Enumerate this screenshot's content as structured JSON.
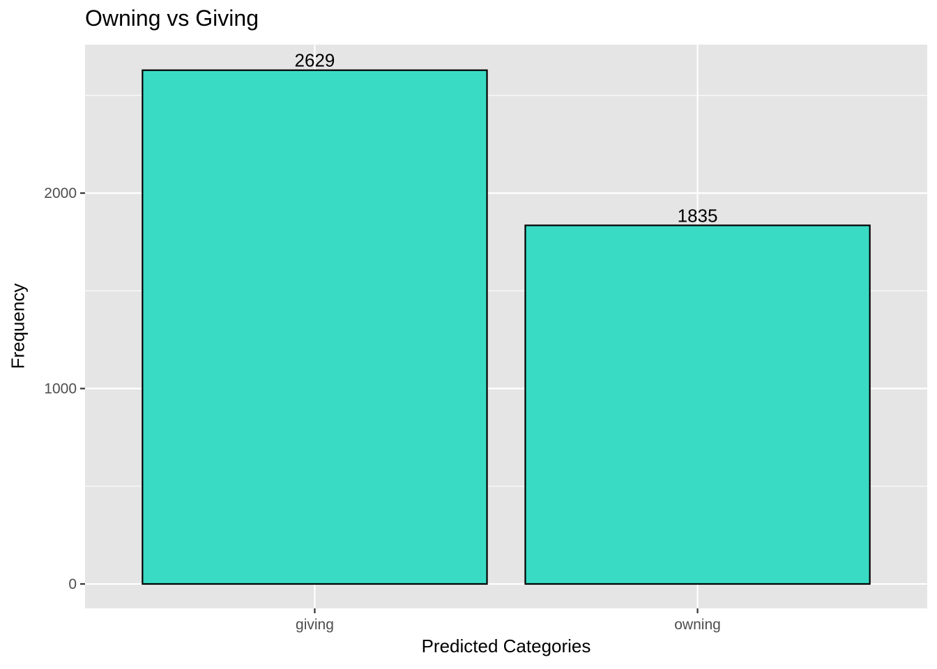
{
  "chart_data": {
    "type": "bar",
    "title": "Owning vs Giving",
    "xlabel": "Predicted Categories",
    "ylabel": "Frequency",
    "categories": [
      "giving",
      "owning"
    ],
    "values": [
      2629,
      1835
    ],
    "data_labels": [
      "2629",
      "1835"
    ],
    "ylim": [
      -125,
      2760
    ],
    "yticks": [
      0,
      1000,
      2000
    ],
    "ytick_labels": [
      "0",
      "1000",
      "2000"
    ],
    "grid": true,
    "legend": "none",
    "colors": {
      "bar_fill": "#3ADBC4",
      "bar_stroke": "#000000",
      "panel_background": "#E5E5E5",
      "grid_major": "#FFFFFF",
      "tick_label": "#4D4D4D"
    }
  }
}
